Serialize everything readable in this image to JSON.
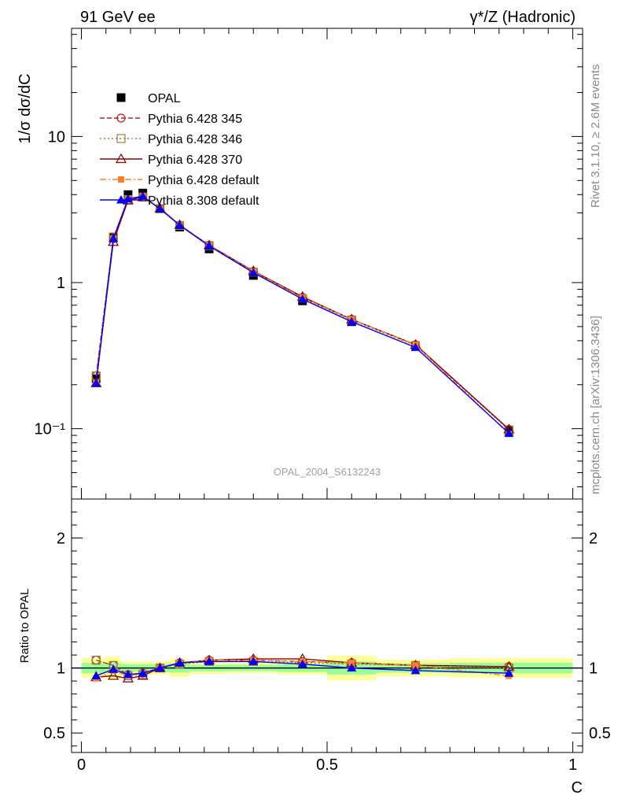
{
  "header": {
    "left": "91 GeV ee",
    "right": "γ*/Z (Hadronic)"
  },
  "side_labels": {
    "rivet": "Rivet 3.1.10, ≥ 2.6M events",
    "source": "mcplots.cern.ch [arXiv:1306.3436]"
  },
  "watermark": "OPAL_2004_S6132243",
  "chart_data": [
    {
      "type": "line",
      "panel": "main",
      "ylabel": "1/σ dσ/dC",
      "xlabel": "C",
      "yscale": "log",
      "ylim": [
        0.033,
        55
      ],
      "xlim": [
        -0.02,
        1.02
      ],
      "yticks": [
        {
          "value": 10,
          "label": "10"
        },
        {
          "value": 1,
          "label": "1"
        },
        {
          "value": 0.1,
          "label": "10⁻¹"
        }
      ],
      "legend_position": "top-left",
      "x": [
        0.03,
        0.065,
        0.095,
        0.125,
        0.16,
        0.2,
        0.26,
        0.35,
        0.45,
        0.55,
        0.68,
        0.87
      ],
      "data": {
        "name": "OPAL",
        "values": [
          0.22,
          2.05,
          4.0,
          4.1,
          3.2,
          2.4,
          1.7,
          1.12,
          0.75,
          0.54,
          0.37,
          0.097
        ]
      },
      "series": [
        {
          "name": "Pythia 6.428 345",
          "color": "#b22222",
          "marker": "open-circle",
          "dash": "6,3",
          "values": [
            0.23,
            2.0,
            3.7,
            3.85,
            3.22,
            2.47,
            1.8,
            1.19,
            0.79,
            0.56,
            0.375,
            0.099
          ]
        },
        {
          "name": "Pythia 6.428 346",
          "color": "#a08030",
          "marker": "open-square",
          "dash": "2,3",
          "values": [
            0.23,
            2.05,
            3.7,
            3.85,
            3.2,
            2.46,
            1.79,
            1.18,
            0.78,
            0.555,
            0.37,
            0.098
          ]
        },
        {
          "name": "Pythia 6.428 370",
          "color": "#8b0000",
          "marker": "open-triangle",
          "dash": "",
          "values": [
            0.205,
            1.9,
            3.65,
            3.85,
            3.22,
            2.48,
            1.8,
            1.2,
            0.8,
            0.56,
            0.376,
            0.099
          ]
        },
        {
          "name": "Pythia 6.428 default",
          "color": "#ff7f2a",
          "marker": "filled-square",
          "dash": "8,3,2,3",
          "values": [
            0.205,
            2.0,
            3.75,
            3.9,
            3.2,
            2.47,
            1.79,
            1.19,
            0.79,
            0.56,
            0.375,
            0.092
          ]
        },
        {
          "name": "Pythia 8.308 default",
          "color": "#0000ff",
          "marker": "filled-triangle",
          "dash": "",
          "values": [
            0.205,
            2.0,
            3.75,
            3.9,
            3.2,
            2.47,
            1.78,
            1.17,
            0.77,
            0.54,
            0.36,
            0.093
          ]
        }
      ]
    },
    {
      "type": "line",
      "panel": "ratio",
      "ylabel": "Ratio to OPAL",
      "xlabel": "C",
      "ylim": [
        0.35,
        2.3
      ],
      "xlim": [
        -0.02,
        1.02
      ],
      "yticks": [
        {
          "value": 2,
          "label": "2"
        },
        {
          "value": 1,
          "label": "1"
        },
        {
          "value": 0.5,
          "label": "0.5"
        }
      ],
      "xticks": [
        {
          "value": 0,
          "label": "0"
        },
        {
          "value": 0.5,
          "label": "0.5"
        },
        {
          "value": 1,
          "label": "1"
        }
      ],
      "x": [
        0.03,
        0.065,
        0.095,
        0.125,
        0.16,
        0.2,
        0.26,
        0.35,
        0.45,
        0.55,
        0.68,
        0.87
      ],
      "bins": [
        0.0,
        0.05,
        0.08,
        0.11,
        0.14,
        0.18,
        0.22,
        0.3,
        0.4,
        0.5,
        0.6,
        0.75,
        1.0
      ],
      "uncertainty_bands": {
        "outer": [
          0.075,
          0.09,
          0.05,
          0.05,
          0.05,
          0.07,
          0.045,
          0.04,
          0.05,
          0.095,
          0.065,
          0.075
        ],
        "inner": [
          0.04,
          0.04,
          0.03,
          0.03,
          0.03,
          0.035,
          0.025,
          0.025,
          0.03,
          0.05,
          0.035,
          0.04
        ],
        "outer_color": "#ffff99",
        "inner_color": "#99ff99"
      },
      "series": [
        {
          "name": "Pythia 6.428 345",
          "values": [
            1.06,
            1.02,
            0.95,
            0.96,
            1.0,
            1.04,
            1.06,
            1.06,
            1.05,
            1.04,
            1.02,
            1.01
          ]
        },
        {
          "name": "Pythia 6.428 346",
          "values": [
            1.06,
            1.02,
            0.94,
            0.95,
            1.0,
            1.03,
            1.05,
            1.05,
            1.04,
            1.03,
            1.02,
            1.0
          ]
        },
        {
          "name": "Pythia 6.428 370",
          "values": [
            0.93,
            0.94,
            0.92,
            0.94,
            1.0,
            1.04,
            1.06,
            1.07,
            1.07,
            1.04,
            1.02,
            1.01
          ]
        },
        {
          "name": "Pythia 6.428 default",
          "values": [
            0.92,
            0.98,
            0.94,
            0.96,
            1.0,
            1.04,
            1.06,
            1.06,
            1.05,
            1.04,
            1.02,
            0.94
          ]
        },
        {
          "name": "Pythia 8.308 default",
          "values": [
            0.94,
            0.99,
            0.95,
            0.96,
            1.0,
            1.04,
            1.05,
            1.05,
            1.03,
            1.0,
            0.98,
            0.96
          ]
        }
      ]
    }
  ]
}
